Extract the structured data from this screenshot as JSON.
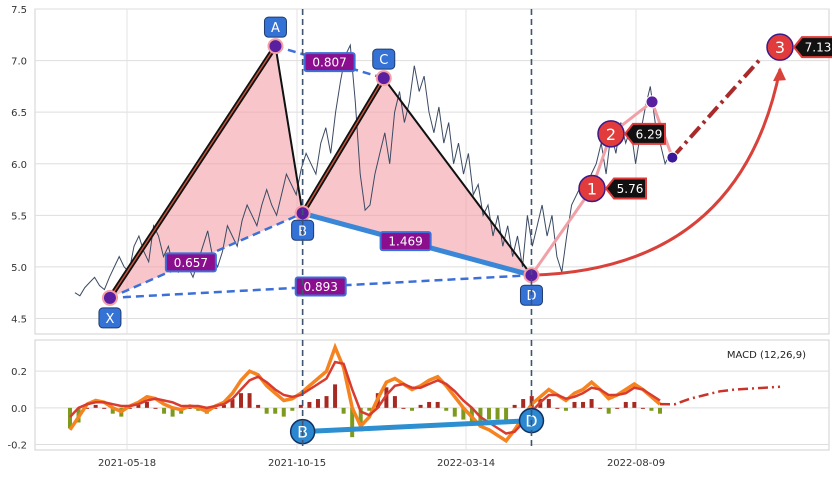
{
  "chart_data": [
    {
      "type": "line",
      "panel": "price",
      "grid": true,
      "x_ticks": [
        "2021-05-18",
        "2021-10-15",
        "2022-03-14",
        "2022-08-09"
      ],
      "y_ticks": [
        "4.5",
        "5.0",
        "5.5",
        "6.0",
        "6.5",
        "7.0",
        "7.5"
      ],
      "ylim": [
        4.35,
        7.5
      ],
      "series": [
        {
          "kind": "price",
          "values": [
            4.75,
            4.72,
            4.8,
            4.85,
            4.9,
            4.82,
            4.78,
            4.9,
            5.0,
            5.1,
            5.0,
            4.95,
            5.2,
            5.3,
            5.15,
            5.05,
            5.4,
            5.3,
            5.1,
            5.2,
            5.0,
            4.95,
            5.1,
            5.0,
            4.9,
            5.05,
            5.2,
            5.35,
            5.1,
            5.0,
            5.15,
            5.4,
            5.3,
            5.2,
            5.45,
            5.6,
            5.5,
            5.4,
            5.6,
            5.75,
            5.6,
            5.5,
            5.7,
            5.9,
            5.8,
            5.7,
            5.95,
            6.1,
            6.0,
            5.9,
            6.2,
            6.35,
            6.1,
            6.5,
            6.8,
            7.05,
            7.15,
            6.6,
            5.9,
            5.55,
            5.6,
            5.9,
            6.1,
            6.3,
            6.0,
            6.5,
            6.7,
            6.4,
            6.6,
            6.95,
            6.7,
            6.85,
            6.5,
            6.3,
            6.55,
            6.2,
            6.4,
            6.0,
            6.2,
            5.9,
            6.1,
            5.7,
            5.8,
            5.5,
            5.6,
            5.3,
            5.5,
            5.2,
            5.4,
            5.1,
            5.3,
            5.0,
            5.5,
            5.2,
            5.4,
            5.6,
            5.3,
            5.5,
            5.1,
            4.95,
            5.3,
            5.6,
            5.7,
            5.8,
            5.7,
            5.9,
            6.0,
            6.2,
            5.9,
            6.3,
            6.1,
            6.4,
            6.2,
            6.35,
            6.0,
            6.3,
            6.55,
            6.75,
            6.4,
            6.2,
            6.0,
            6.1
          ]
        }
      ],
      "pattern_points": [
        {
          "label": "X",
          "x": "2021-04-28",
          "y": 4.7
        },
        {
          "label": "A",
          "x": "2021-09-26",
          "y": 7.14
        },
        {
          "label": "B",
          "x": "2021-10-20",
          "y": 5.52
        },
        {
          "label": "C",
          "x": "2021-12-31",
          "y": 6.83
        },
        {
          "label": "D",
          "x": "2022-05-10",
          "y": 4.92
        }
      ],
      "ratios": [
        {
          "from": "X",
          "to": "B",
          "label": "0.657"
        },
        {
          "from": "A",
          "to": "C",
          "label": "0.807"
        },
        {
          "from": "B",
          "to": "D",
          "label": "1.469"
        },
        {
          "from": "X",
          "to": "D",
          "label": "0.893"
        }
      ],
      "targets": [
        {
          "label": "1",
          "value": "5.76",
          "y": 5.76
        },
        {
          "label": "2",
          "value": "6.29",
          "y": 6.29
        },
        {
          "label": "3",
          "value": "7.13",
          "y": 7.13
        }
      ],
      "projection_points": [
        {
          "x": "2022-08-24",
          "y": 6.6
        },
        {
          "x": "2022-09-12",
          "y": 6.06
        }
      ],
      "colors": {
        "fill": "#f4a0a6",
        "leg": "#111111",
        "leg_inner": "#c8553d",
        "bd_line": "#3a87d8",
        "dashed": "#3c6fd8",
        "target": "#e23b3b",
        "label_box": "#8b0e8e",
        "point_box": "#3572d6",
        "price": "#3b4a63"
      }
    },
    {
      "type": "bar",
      "panel": "macd",
      "legend": "MACD (12,26,9)",
      "legend_position": "top-right",
      "grid": true,
      "y_ticks": [
        "-0.2",
        "0.0",
        "0.2"
      ],
      "ylim": [
        -0.23,
        0.37
      ],
      "macd": [
        -0.12,
        -0.05,
        0.02,
        0.04,
        0.03,
        0.0,
        -0.02,
        0.01,
        0.03,
        0.06,
        0.05,
        0.02,
        0.0,
        -0.01,
        0.01,
        0.0,
        -0.02,
        0.01,
        0.03,
        0.08,
        0.15,
        0.2,
        0.18,
        0.12,
        0.08,
        0.04,
        0.05,
        0.08,
        0.12,
        0.16,
        0.2,
        0.33,
        0.22,
        0.0,
        -0.1,
        -0.05,
        0.05,
        0.14,
        0.16,
        0.13,
        0.1,
        0.12,
        0.15,
        0.17,
        0.12,
        0.06,
        0.0,
        -0.05,
        -0.1,
        -0.12,
        -0.15,
        -0.18,
        -0.12,
        -0.05,
        0.02,
        0.06,
        0.1,
        0.07,
        0.04,
        0.08,
        0.1,
        0.14,
        0.1,
        0.05,
        0.07,
        0.1,
        0.13,
        0.1,
        0.06,
        0.02
      ],
      "signal": [
        -0.05,
        0.0,
        0.02,
        0.03,
        0.03,
        0.02,
        0.01,
        0.01,
        0.02,
        0.04,
        0.05,
        0.04,
        0.03,
        0.01,
        0.01,
        0.01,
        0.0,
        0.01,
        0.02,
        0.05,
        0.1,
        0.15,
        0.17,
        0.14,
        0.1,
        0.07,
        0.06,
        0.07,
        0.1,
        0.13,
        0.16,
        0.25,
        0.24,
        0.1,
        -0.02,
        -0.04,
        0.0,
        0.07,
        0.12,
        0.13,
        0.11,
        0.11,
        0.13,
        0.15,
        0.13,
        0.09,
        0.04,
        0.0,
        -0.05,
        -0.08,
        -0.11,
        -0.14,
        -0.13,
        -0.08,
        -0.02,
        0.03,
        0.07,
        0.07,
        0.05,
        0.06,
        0.08,
        0.11,
        0.1,
        0.07,
        0.07,
        0.08,
        0.11,
        0.1,
        0.07,
        0.04
      ],
      "projection": [
        0.02,
        0.05,
        0.07,
        0.09,
        0.1,
        0.105,
        0.11,
        0.115
      ],
      "bd_points": [
        {
          "label": "B",
          "y": -0.13
        },
        {
          "label": "D",
          "y": -0.07
        }
      ],
      "colors": {
        "macd": "#f5831f",
        "signal": "#d93b2f",
        "hist_pos": "#a62a22",
        "hist_neg": "#7e9a1e",
        "bd_line": "#2d8fd0",
        "marker": "#2a87d0"
      }
    }
  ]
}
